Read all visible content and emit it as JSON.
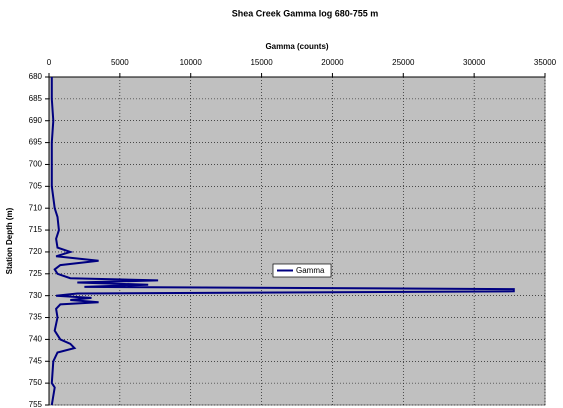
{
  "chart_data": {
    "type": "line",
    "orientation": "horizontal",
    "title": "Shea Creek Gamma log 680-755 m",
    "xlabel": "Gamma (counts)",
    "ylabel": "Station Depth (m)",
    "xlim": [
      0,
      35000
    ],
    "xticks": [
      0,
      5000,
      10000,
      15000,
      20000,
      25000,
      30000,
      35000
    ],
    "ylim": [
      680,
      755
    ],
    "yticks": [
      680,
      685,
      690,
      695,
      700,
      705,
      710,
      715,
      720,
      725,
      730,
      735,
      740,
      745,
      750,
      755
    ],
    "y_inverted": true,
    "grid": true,
    "background": "#c0c0c0",
    "legend": "center",
    "y": [
      680,
      685,
      690,
      695,
      700,
      705,
      710,
      712,
      715,
      717,
      719,
      720,
      721,
      722,
      723,
      724,
      725,
      726,
      726.5,
      727,
      727.5,
      728,
      728.5,
      729,
      729.5,
      730,
      730.5,
      731,
      731.5,
      732,
      733,
      735,
      738,
      740,
      741,
      742,
      743,
      745,
      750,
      751,
      755
    ],
    "series": [
      {
        "name": "Gamma",
        "color": "#000080",
        "values": [
          200,
          200,
          300,
          200,
          200,
          200,
          400,
          600,
          700,
          500,
          600,
          1500,
          500,
          3500,
          800,
          400,
          600,
          1500,
          7700,
          2000,
          7000,
          2500,
          32800,
          32800,
          2000,
          500,
          3000,
          1500,
          3500,
          800,
          500,
          600,
          400,
          800,
          1500,
          1800,
          600,
          300,
          200,
          400,
          200
        ]
      }
    ]
  }
}
